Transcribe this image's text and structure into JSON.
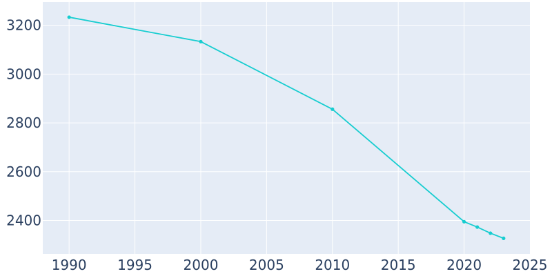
{
  "chart_data": {
    "type": "line",
    "title": "",
    "xlabel": "",
    "ylabel": "",
    "xlim": [
      1988,
      2025
    ],
    "ylim": [
      2263,
      3295
    ],
    "x_ticks": [
      1990,
      1995,
      2000,
      2005,
      2010,
      2015,
      2020,
      2025
    ],
    "y_ticks": [
      2400,
      2600,
      2800,
      3000,
      3200
    ],
    "grid": true,
    "legend": "none",
    "colors": {
      "plot_background": "#e5ecf6",
      "series": "#17cdd0",
      "tick_text": "#2a3f5f",
      "grid": "#ffffff"
    },
    "series": [
      {
        "x": [
          1990,
          2000,
          2010,
          2020,
          2021,
          2022,
          2023
        ],
        "y": [
          3233,
          3133,
          2856,
          2395,
          2373,
          2348,
          2327
        ]
      }
    ]
  }
}
